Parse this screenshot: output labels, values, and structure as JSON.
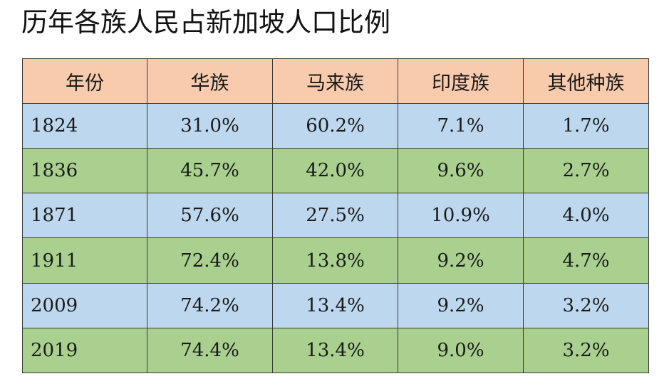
{
  "title": "历年各族人民占新加坡人口比例",
  "table": {
    "headers": [
      "年份",
      "华族",
      "马来族",
      "印度族",
      "其他种族"
    ],
    "rows": [
      {
        "year": "1824",
        "values": [
          "31.0%",
          "60.2%",
          "7.1%",
          "1.7%"
        ]
      },
      {
        "year": "1836",
        "values": [
          "45.7%",
          "42.0%",
          "9.6%",
          "2.7%"
        ]
      },
      {
        "year": "1871",
        "values": [
          "57.6%",
          "27.5%",
          "10.9%",
          "4.0%"
        ]
      },
      {
        "year": "1911",
        "values": [
          "72.4%",
          "13.8%",
          "9.2%",
          "4.7%"
        ]
      },
      {
        "year": "2009",
        "values": [
          "74.2%",
          "13.4%",
          "9.2%",
          "3.2%"
        ]
      },
      {
        "year": "2019",
        "values": [
          "74.4%",
          "13.4%",
          "9.0%",
          "3.2%"
        ]
      }
    ]
  },
  "colors": {
    "header_fill": "#f8cbad",
    "odd_row_fill": "#bdd7ee",
    "even_row_fill": "#a9d08e",
    "border": "#3a3a3a"
  }
}
